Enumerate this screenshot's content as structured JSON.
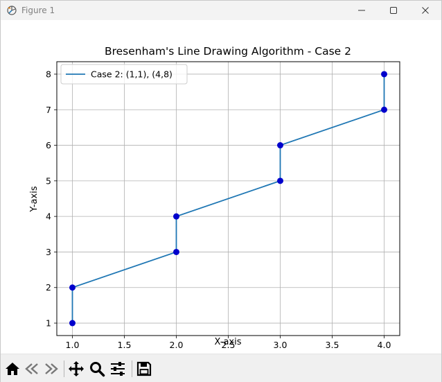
{
  "window": {
    "title": "Figure 1",
    "icons": {
      "app": "matplotlib-figure-icon",
      "minimize": "minimize-icon",
      "maximize": "maximize-icon",
      "close": "close-icon"
    }
  },
  "toolbar": {
    "buttons": [
      {
        "name": "home",
        "icon": "home-icon"
      },
      {
        "name": "back",
        "icon": "arrow-left-icon"
      },
      {
        "name": "forward",
        "icon": "arrow-right-icon"
      },
      {
        "name": "pan",
        "icon": "move-icon"
      },
      {
        "name": "zoom",
        "icon": "magnifier-icon"
      },
      {
        "name": "configure-subplots",
        "icon": "sliders-icon"
      },
      {
        "name": "save",
        "icon": "floppy-disk-icon"
      }
    ]
  },
  "chart_data": {
    "type": "line",
    "title": "Bresenham's Line Drawing Algorithm - Case 2",
    "xlabel": "X-axis",
    "ylabel": "Y-axis",
    "xlim": [
      0.85,
      4.15
    ],
    "ylim": [
      0.65,
      8.35
    ],
    "xticks": [
      1.0,
      1.5,
      2.0,
      2.5,
      3.0,
      3.5,
      4.0
    ],
    "xtick_labels": [
      "1.0",
      "1.5",
      "2.0",
      "2.5",
      "3.0",
      "3.5",
      "4.0"
    ],
    "yticks": [
      1,
      2,
      3,
      4,
      5,
      6,
      7,
      8
    ],
    "ytick_labels": [
      "1",
      "2",
      "3",
      "4",
      "5",
      "6",
      "7",
      "8"
    ],
    "grid": true,
    "legend": {
      "placement": "top-left"
    },
    "series": [
      {
        "name": "Case 2: (1,1), (4,8)",
        "color": "#1f77b4",
        "marker_color": "#0000cc",
        "x": [
          1,
          1,
          2,
          2,
          3,
          3,
          4,
          4
        ],
        "y": [
          1,
          2,
          3,
          4,
          5,
          6,
          7,
          8
        ]
      }
    ]
  }
}
